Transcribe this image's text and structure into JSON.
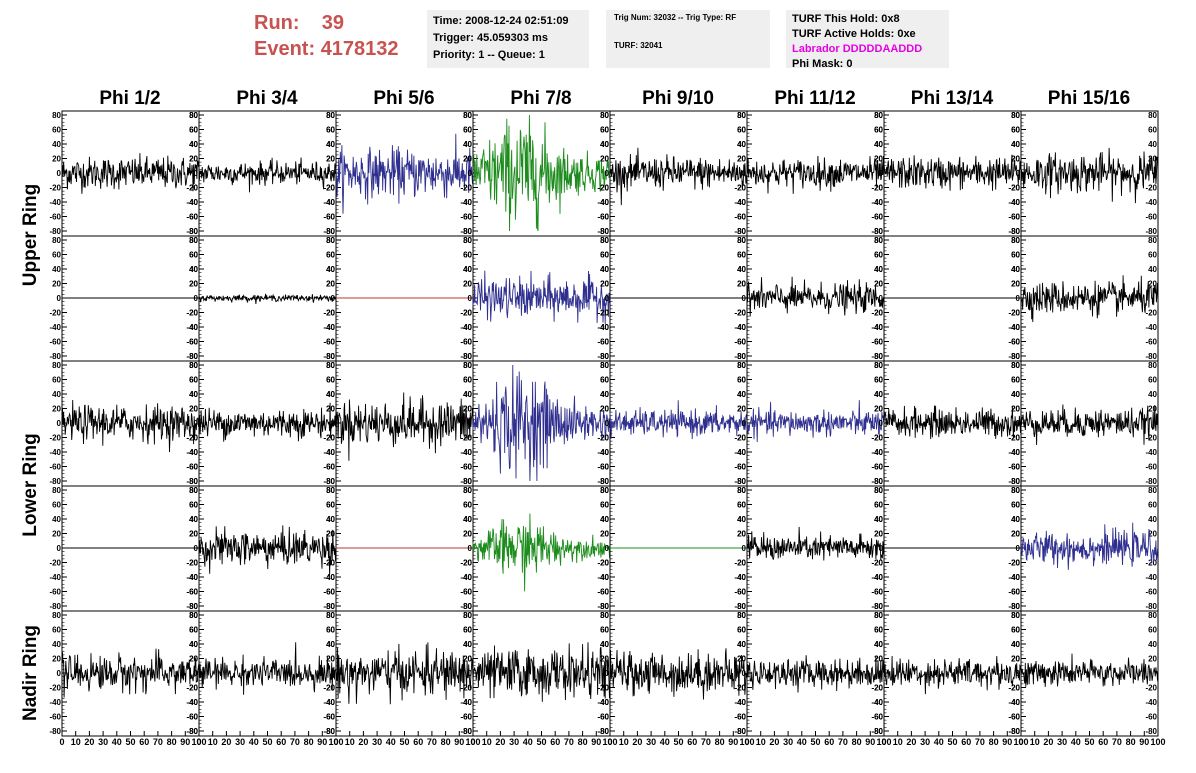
{
  "header": {
    "run_label": "Run:",
    "run_value": "39",
    "event_label": "Event:",
    "event_value": "4178132",
    "time": "Time: 2008-12-24 02:51:09",
    "trigger": "Trigger: 45.059303 ms",
    "priority": "Priority: 1 -- Queue: 1",
    "trig_num": "Trig Num: 32032 -- Trig Type: RF",
    "turf": "TURF: 32041",
    "turf_hold": "TURF This Hold: 0x8",
    "turf_active": "TURF Active Holds: 0xe",
    "labrador": "Labrador DDDDDAADDD",
    "phi_mask": "Phi Mask: 0"
  },
  "colors": {
    "header_run": "#c8524f",
    "header_box": "#efefef",
    "labrador": "#e600e6",
    "trace_black": "#000000",
    "trace_blue": "#2f2f8f",
    "trace_green": "#1d8c1d",
    "trace_red": "#c03030"
  },
  "chart_data": {
    "type": "line",
    "columns": [
      "Phi 1/2",
      "Phi 3/4",
      "Phi 5/6",
      "Phi 7/8",
      "Phi 9/10",
      "Phi 11/12",
      "Phi 13/14",
      "Phi 15/16"
    ],
    "ring_labels": [
      "Upper Ring",
      "Lower Ring",
      "Nadir Ring"
    ],
    "rows": [
      {
        "ring": "Upper Ring",
        "panels": [
          {
            "color": "black",
            "amplitude": 20
          },
          {
            "color": "black",
            "amplitude": 14
          },
          {
            "color": "blue",
            "amplitude": 30
          },
          {
            "color": "green",
            "amplitude": 45
          },
          {
            "color": "black",
            "amplitude": 20
          },
          {
            "color": "black",
            "amplitude": 18
          },
          {
            "color": "black",
            "amplitude": 20
          },
          {
            "color": "black",
            "amplitude": 24
          }
        ]
      },
      {
        "ring": "Upper Ring",
        "panels": [
          {
            "color": "black",
            "amplitude": 0
          },
          {
            "color": "black",
            "amplitude": 4
          },
          {
            "color": "red",
            "amplitude": 0
          },
          {
            "color": "blue",
            "amplitude": 25
          },
          {
            "color": "black",
            "amplitude": 0
          },
          {
            "color": "black",
            "amplitude": 18
          },
          {
            "color": "black",
            "amplitude": 0
          },
          {
            "color": "black",
            "amplitude": 20
          }
        ]
      },
      {
        "ring": "Lower Ring",
        "panels": [
          {
            "color": "black",
            "amplitude": 22
          },
          {
            "color": "black",
            "amplitude": 18
          },
          {
            "color": "black",
            "amplitude": 28
          },
          {
            "color": "blue",
            "amplitude": 42
          },
          {
            "color": "blue",
            "amplitude": 16
          },
          {
            "color": "blue",
            "amplitude": 16
          },
          {
            "color": "black",
            "amplitude": 18
          },
          {
            "color": "black",
            "amplitude": 18
          }
        ]
      },
      {
        "ring": "Lower Ring",
        "panels": [
          {
            "color": "black",
            "amplitude": 0
          },
          {
            "color": "black",
            "amplitude": 22
          },
          {
            "color": "red",
            "amplitude": 0
          },
          {
            "color": "green",
            "amplitude": 24
          },
          {
            "color": "green",
            "amplitude": 0
          },
          {
            "color": "black",
            "amplitude": 16
          },
          {
            "color": "black",
            "amplitude": 0
          },
          {
            "color": "blue",
            "amplitude": 20
          }
        ]
      },
      {
        "ring": "Nadir Ring",
        "panels": [
          {
            "color": "black",
            "amplitude": 22
          },
          {
            "color": "black",
            "amplitude": 18
          },
          {
            "color": "black",
            "amplitude": 28
          },
          {
            "color": "black",
            "amplitude": 30
          },
          {
            "color": "black",
            "amplitude": 26
          },
          {
            "color": "black",
            "amplitude": 18
          },
          {
            "color": "black",
            "amplitude": 18
          },
          {
            "color": "black",
            "amplitude": 16
          }
        ]
      }
    ],
    "ylim": [
      -80,
      80
    ],
    "yticks": [
      -80,
      -60,
      -40,
      -20,
      0,
      20,
      40,
      60,
      80
    ],
    "yticks_right": [
      -80,
      -60,
      -40,
      -20,
      20,
      40,
      60,
      80
    ],
    "xlim": [
      0,
      100
    ],
    "xticks": [
      0,
      10,
      20,
      30,
      40,
      50,
      60,
      70,
      80,
      90,
      100
    ],
    "samples": 256,
    "grid": false,
    "legend": false
  }
}
